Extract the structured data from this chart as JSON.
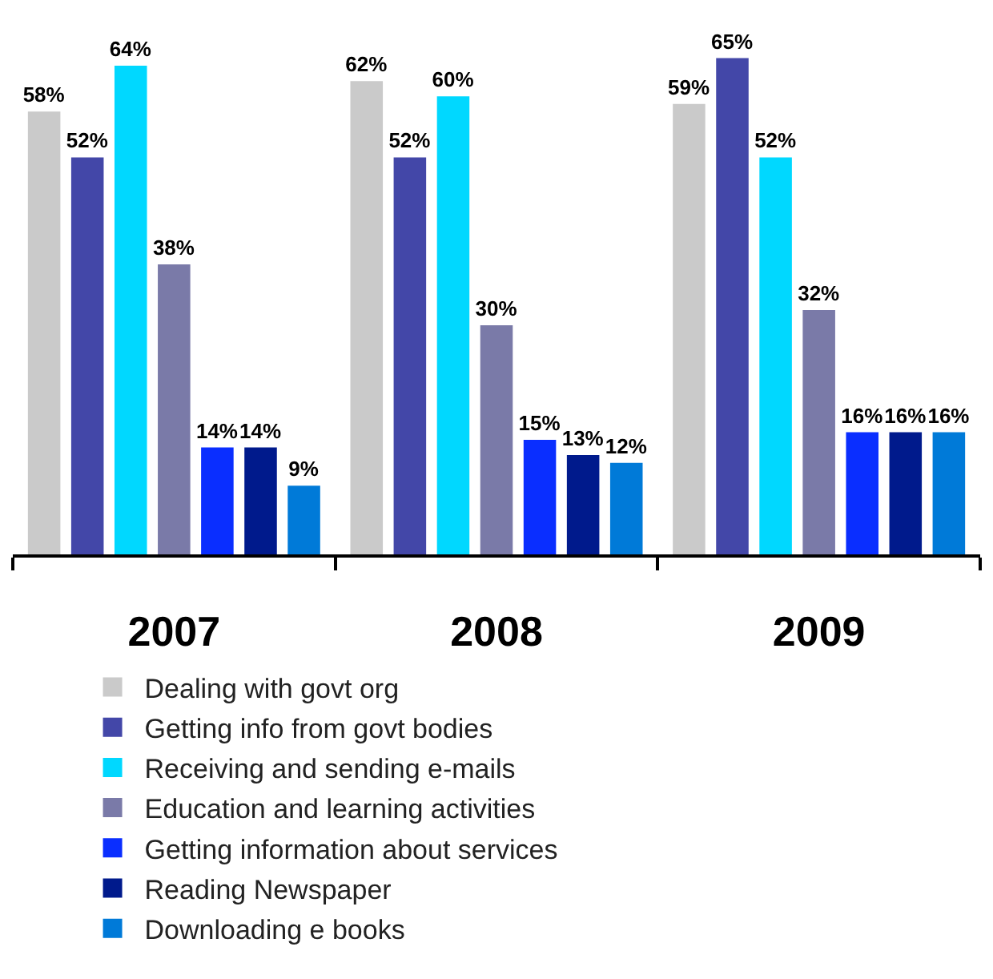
{
  "chart_data": {
    "type": "bar",
    "categories": [
      "2007",
      "2008",
      "2009"
    ],
    "series": [
      {
        "name": "Dealing with govt org",
        "color": "#cacaca",
        "values": [
          58,
          62,
          59
        ],
        "value_labels": [
          "58%",
          "62%",
          "59%"
        ]
      },
      {
        "name": "Getting info from govt bodies",
        "color": "#4347a8",
        "values": [
          52,
          52,
          65
        ],
        "value_labels": [
          "52%",
          "52%",
          "65%"
        ]
      },
      {
        "name": "Receiving and sending e-mails",
        "color": "#00d8ff",
        "values": [
          64,
          60,
          52
        ],
        "value_labels": [
          "64%",
          "60%",
          "52%"
        ]
      },
      {
        "name": "Education and learning activities",
        "color": "#7a7aa8",
        "values": [
          38,
          30,
          32
        ],
        "value_labels": [
          "38%",
          "30%",
          "32%"
        ]
      },
      {
        "name": "Getting information about services",
        "color": "#0a2eff",
        "values": [
          14,
          15,
          16
        ],
        "value_labels": [
          "14%",
          "15%",
          "16%"
        ]
      },
      {
        "name": "Reading Newspaper",
        "color": "#001a8c",
        "values": [
          14,
          13,
          16
        ],
        "value_labels": [
          "14%",
          "13%",
          "16%"
        ]
      },
      {
        "name": "Downloading e books",
        "color": "#007ad8",
        "values": [
          9,
          12,
          16
        ],
        "value_labels": [
          "9%",
          "12%",
          "16%"
        ]
      }
    ],
    "legend": "bottom"
  }
}
